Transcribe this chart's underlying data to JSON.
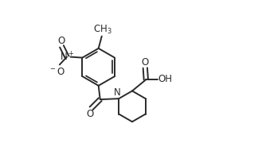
{
  "background_color": "#ffffff",
  "line_color": "#2a2a2a",
  "line_width": 1.4,
  "font_size": 8.5,
  "figsize": [
    3.29,
    1.85
  ],
  "dpi": 100,
  "xlim": [
    0.0,
    1.0
  ],
  "ylim": [
    0.05,
    0.95
  ]
}
